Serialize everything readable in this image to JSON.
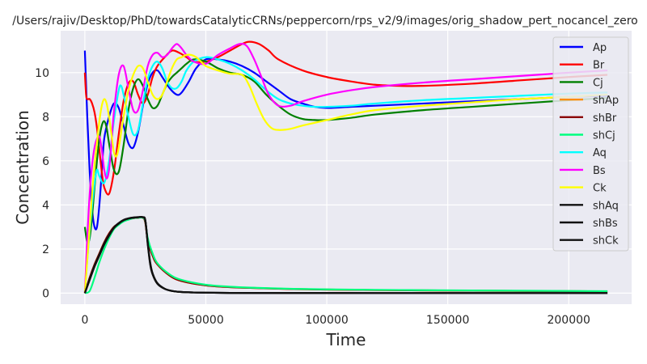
{
  "chart_data": {
    "type": "line",
    "title": "/Users/rajiv/Desktop/PhD/towardsCatalyticCRNs/peppercorn/rps_v2/9/images/orig_shadow_pert_nocancel_zero",
    "xlabel": "Time",
    "ylabel": "Concentration",
    "xlim": [
      -10000,
      226000
    ],
    "ylim": [
      -0.5,
      11.9
    ],
    "xticks": [
      0,
      50000,
      100000,
      150000,
      200000
    ],
    "xtick_labels": [
      "0",
      "50000",
      "100000",
      "150000",
      "200000"
    ],
    "yticks": [
      0,
      2,
      4,
      6,
      8,
      10
    ],
    "ytick_labels": [
      "0",
      "2",
      "4",
      "6",
      "8",
      "10"
    ],
    "grid": true,
    "legend_position": "top-right",
    "series": [
      {
        "name": "Ap",
        "color": "#0000ff",
        "x": [
          0,
          1000,
          2000,
          3000,
          4000,
          5000,
          6000,
          7000,
          8000,
          10000,
          12000,
          14000,
          16000,
          18000,
          20000,
          22000,
          24000,
          26000,
          28000,
          30000,
          32000,
          35000,
          38000,
          40000,
          43000,
          46000,
          50000,
          55000,
          60000,
          65000,
          70000,
          75000,
          80000,
          85000,
          90000,
          95000,
          100000,
          110000,
          120000,
          140000,
          160000,
          180000,
          200000,
          216000
        ],
        "y": [
          11,
          8,
          5.5,
          3.8,
          3.0,
          3.0,
          4.0,
          5.5,
          7.0,
          8.0,
          8.6,
          8.4,
          7.6,
          6.8,
          6.6,
          7.3,
          8.5,
          9.5,
          10.0,
          10.1,
          9.8,
          9.3,
          9.0,
          9.1,
          9.6,
          10.2,
          10.6,
          10.6,
          10.5,
          10.3,
          10.0,
          9.6,
          9.2,
          8.8,
          8.6,
          8.45,
          8.4,
          8.45,
          8.5,
          8.6,
          8.7,
          8.8,
          8.9,
          8.95
        ]
      },
      {
        "name": "Br",
        "color": "#ff0000",
        "x": [
          0,
          500,
          1000,
          2000,
          3000,
          4000,
          5000,
          6000,
          7000,
          8000,
          10000,
          12000,
          14000,
          16000,
          18000,
          20000,
          22000,
          24000,
          26000,
          28000,
          30000,
          33000,
          36000,
          39000,
          42000,
          45000,
          50000,
          55000,
          60000,
          65000,
          68000,
          72000,
          76000,
          80000,
          90000,
          100000,
          110000,
          120000,
          130000,
          140000,
          160000,
          180000,
          200000,
          216000
        ],
        "y": [
          10,
          9.0,
          8.8,
          8.8,
          8.6,
          8.2,
          7.5,
          6.5,
          5.5,
          4.8,
          4.5,
          5.5,
          7.2,
          8.7,
          9.5,
          9.6,
          9.0,
          8.6,
          9.0,
          9.8,
          10.3,
          10.7,
          11.0,
          10.9,
          10.7,
          10.5,
          10.5,
          10.7,
          11.0,
          11.3,
          11.4,
          11.3,
          11.0,
          10.6,
          10.1,
          9.8,
          9.6,
          9.45,
          9.4,
          9.4,
          9.5,
          9.65,
          9.8,
          9.9
        ]
      },
      {
        "name": "Cj",
        "color": "#008000",
        "x": [
          0,
          1000,
          2000,
          3000,
          4000,
          5000,
          6000,
          7000,
          8000,
          9000,
          10000,
          12000,
          14000,
          16000,
          18000,
          20000,
          22000,
          24000,
          26000,
          28000,
          30000,
          32000,
          34000,
          36000,
          38000,
          40000,
          42000,
          45000,
          50000,
          55000,
          60000,
          65000,
          70000,
          75000,
          80000,
          85000,
          90000,
          95000,
          100000,
          110000,
          120000,
          140000,
          160000,
          180000,
          200000,
          216000
        ],
        "y": [
          3.0,
          2.3,
          2.5,
          3.5,
          4.8,
          6.0,
          7.0,
          7.6,
          7.8,
          7.5,
          6.8,
          5.6,
          5.5,
          6.7,
          8.3,
          9.3,
          9.7,
          9.4,
          8.8,
          8.4,
          8.5,
          9.0,
          9.5,
          9.8,
          10.0,
          10.2,
          10.4,
          10.6,
          10.5,
          10.2,
          10.0,
          9.9,
          9.6,
          9.0,
          8.5,
          8.1,
          7.9,
          7.85,
          7.85,
          7.95,
          8.1,
          8.3,
          8.45,
          8.6,
          8.75,
          8.85
        ]
      },
      {
        "name": "shAp",
        "color": "#ff8c00",
        "x": [
          0,
          2000,
          4000,
          6000,
          8000,
          10000,
          12000,
          14000,
          16000,
          18000,
          20000,
          22000,
          24000,
          25000,
          26000,
          28000,
          30000,
          35000,
          40000,
          50000,
          60000,
          80000,
          100000,
          130000,
          160000,
          216000
        ],
        "y": [
          0,
          0.7,
          1.3,
          1.8,
          2.3,
          2.7,
          3.0,
          3.15,
          3.3,
          3.35,
          3.4,
          3.42,
          3.42,
          3.2,
          2.4,
          1.7,
          1.3,
          0.8,
          0.55,
          0.35,
          0.27,
          0.2,
          0.16,
          0.13,
          0.11,
          0.08
        ]
      },
      {
        "name": "shBr",
        "color": "#8b0000",
        "x": [
          0,
          2000,
          4000,
          6000,
          8000,
          10000,
          12000,
          14000,
          16000,
          18000,
          20000,
          22000,
          24000,
          25000,
          26000,
          28000,
          30000,
          35000,
          40000,
          50000,
          60000,
          80000,
          100000,
          130000,
          160000,
          216000
        ],
        "y": [
          0,
          0.7,
          1.3,
          1.8,
          2.3,
          2.7,
          3.0,
          3.15,
          3.3,
          3.35,
          3.4,
          3.42,
          3.42,
          3.2,
          2.4,
          1.7,
          1.3,
          0.8,
          0.55,
          0.35,
          0.27,
          0.2,
          0.16,
          0.13,
          0.11,
          0.08
        ]
      },
      {
        "name": "shCj",
        "color": "#00ff7f",
        "x": [
          0,
          2000,
          4000,
          6000,
          8000,
          10000,
          12000,
          14000,
          16000,
          18000,
          20000,
          22000,
          24000,
          25000,
          26000,
          28000,
          30000,
          35000,
          40000,
          50000,
          60000,
          80000,
          100000,
          130000,
          160000,
          216000
        ],
        "y": [
          0,
          0.1,
          0.7,
          1.4,
          2.0,
          2.5,
          2.9,
          3.1,
          3.25,
          3.33,
          3.4,
          3.42,
          3.42,
          3.25,
          2.5,
          1.8,
          1.35,
          0.85,
          0.6,
          0.38,
          0.29,
          0.21,
          0.17,
          0.14,
          0.12,
          0.09
        ]
      },
      {
        "name": "Aq",
        "color": "#00ffff",
        "x": [
          0,
          1000,
          2000,
          3000,
          4000,
          5000,
          6000,
          8000,
          10000,
          12000,
          14000,
          15000,
          16000,
          18000,
          20000,
          22000,
          24000,
          26000,
          28000,
          30000,
          32000,
          34000,
          36000,
          38000,
          40000,
          42000,
          45000,
          50000,
          55000,
          60000,
          65000,
          70000,
          75000,
          80000,
          85000,
          90000,
          95000,
          100000,
          110000,
          120000,
          140000,
          160000,
          180000,
          200000,
          216000
        ],
        "y": [
          0,
          1.5,
          2.8,
          4.0,
          5.0,
          5.6,
          5.3,
          5.0,
          6.0,
          7.8,
          9.2,
          9.4,
          9.0,
          8.0,
          7.2,
          7.4,
          8.6,
          9.7,
          10.3,
          10.5,
          10.2,
          9.6,
          9.3,
          9.3,
          9.6,
          10.1,
          10.5,
          10.7,
          10.6,
          10.4,
          10.1,
          9.7,
          9.2,
          8.8,
          8.6,
          8.5,
          8.45,
          8.45,
          8.5,
          8.6,
          8.75,
          8.85,
          8.95,
          9.05,
          9.1
        ]
      },
      {
        "name": "Bs",
        "color": "#ff00ff",
        "x": [
          0,
          1000,
          2000,
          3000,
          4000,
          5000,
          6000,
          7000,
          8000,
          9000,
          10000,
          11000,
          12000,
          14000,
          16000,
          18000,
          20000,
          22000,
          24000,
          26000,
          28000,
          30000,
          32000,
          34000,
          36000,
          38000,
          40000,
          42000,
          45000,
          50000,
          55000,
          60000,
          64000,
          67000,
          70000,
          73000,
          76000,
          80000,
          85000,
          90000,
          100000,
          110000,
          120000,
          140000,
          160000,
          180000,
          200000,
          216000
        ],
        "y": [
          0,
          2.5,
          4.5,
          5.8,
          6.6,
          7.0,
          7.1,
          6.5,
          5.6,
          5.2,
          5.6,
          6.8,
          8.2,
          9.9,
          10.3,
          9.3,
          8.3,
          8.3,
          9.2,
          10.3,
          10.8,
          10.9,
          10.7,
          10.8,
          11.1,
          11.3,
          11.1,
          10.8,
          10.5,
          10.4,
          10.8,
          11.1,
          11.3,
          11.2,
          10.6,
          9.8,
          9.0,
          8.5,
          8.5,
          8.7,
          9.0,
          9.2,
          9.35,
          9.55,
          9.7,
          9.85,
          10.0,
          10.1
        ]
      },
      {
        "name": "Ck",
        "color": "#ffff00",
        "x": [
          0,
          1000,
          2000,
          3000,
          4000,
          5000,
          6000,
          7000,
          8000,
          9000,
          10000,
          11000,
          12000,
          13000,
          14000,
          16000,
          18000,
          20000,
          22000,
          24000,
          26000,
          28000,
          30000,
          32000,
          34000,
          36000,
          38000,
          40000,
          42000,
          44000,
          46000,
          48000,
          50000,
          55000,
          60000,
          65000,
          68000,
          71000,
          74000,
          77000,
          80000,
          85000,
          90000,
          100000,
          110000,
          120000,
          140000,
          160000,
          180000,
          200000,
          216000
        ],
        "y": [
          0,
          1.5,
          3.0,
          4.5,
          5.8,
          6.8,
          7.8,
          8.5,
          8.8,
          8.6,
          8.0,
          7.2,
          6.4,
          6.2,
          6.6,
          8.0,
          9.2,
          9.9,
          10.3,
          10.2,
          9.6,
          9.0,
          8.8,
          9.0,
          9.6,
          10.2,
          10.6,
          10.7,
          10.8,
          10.8,
          10.7,
          10.5,
          10.3,
          10.1,
          9.95,
          9.9,
          9.4,
          8.6,
          7.9,
          7.5,
          7.4,
          7.45,
          7.6,
          7.85,
          8.1,
          8.3,
          8.5,
          8.65,
          8.8,
          8.9,
          9.0
        ]
      },
      {
        "name": "shAq",
        "color": "#111111",
        "x": [
          0,
          2000,
          4000,
          6000,
          8000,
          10000,
          12000,
          14000,
          16000,
          18000,
          20000,
          22000,
          24000,
          25000,
          26000,
          27000,
          28000,
          30000,
          33000,
          36000,
          40000,
          45000,
          50000,
          60000,
          80000,
          120000,
          160000,
          216000
        ],
        "y": [
          0,
          0.6,
          1.2,
          1.7,
          2.2,
          2.6,
          2.95,
          3.15,
          3.3,
          3.38,
          3.42,
          3.44,
          3.44,
          3.3,
          2.3,
          1.4,
          0.9,
          0.45,
          0.2,
          0.1,
          0.05,
          0.03,
          0.02,
          0.01,
          0.005,
          0.003,
          0.002,
          0.001
        ]
      },
      {
        "name": "shBs",
        "color": "#111111",
        "x": [
          0,
          2000,
          4000,
          6000,
          8000,
          10000,
          12000,
          14000,
          16000,
          18000,
          20000,
          22000,
          24000,
          25000,
          26000,
          27000,
          28000,
          30000,
          33000,
          36000,
          40000,
          45000,
          50000,
          60000,
          80000,
          120000,
          160000,
          216000
        ],
        "y": [
          0,
          0.65,
          1.25,
          1.75,
          2.25,
          2.65,
          2.98,
          3.18,
          3.32,
          3.39,
          3.43,
          3.45,
          3.45,
          3.3,
          2.2,
          1.3,
          0.85,
          0.42,
          0.19,
          0.1,
          0.05,
          0.03,
          0.02,
          0.01,
          0.005,
          0.003,
          0.002,
          0.001
        ]
      },
      {
        "name": "shCk",
        "color": "#111111",
        "x": [
          0,
          2000,
          4000,
          6000,
          8000,
          10000,
          12000,
          14000,
          16000,
          18000,
          20000,
          22000,
          24000,
          25000,
          26000,
          27000,
          28000,
          30000,
          33000,
          36000,
          40000,
          45000,
          50000,
          60000,
          80000,
          120000,
          160000,
          216000
        ],
        "y": [
          0,
          0.62,
          1.22,
          1.72,
          2.22,
          2.62,
          2.96,
          3.16,
          3.31,
          3.38,
          3.42,
          3.44,
          3.44,
          3.28,
          2.25,
          1.35,
          0.88,
          0.44,
          0.2,
          0.1,
          0.05,
          0.03,
          0.02,
          0.01,
          0.005,
          0.003,
          0.002,
          0.001
        ]
      }
    ]
  }
}
